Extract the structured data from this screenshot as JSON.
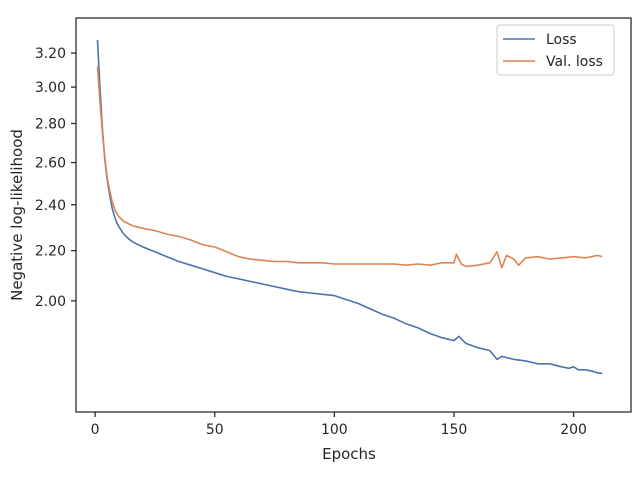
{
  "chart_data": {
    "type": "line",
    "xlabel": "Epochs",
    "ylabel": "Negative log-likelihood",
    "xlim": [
      -8,
      224
    ],
    "ylim": [
      1.62,
      3.42
    ],
    "y_scale": "log",
    "grid": false,
    "legend_position": "top-right",
    "x_ticks": [
      0,
      50,
      100,
      150,
      200
    ],
    "x_tick_labels": [
      "0",
      "50",
      "100",
      "150",
      "200"
    ],
    "y_ticks": [
      2.0,
      2.2,
      2.4,
      2.6,
      2.8,
      3.0,
      3.2
    ],
    "y_tick_labels": [
      "2.00",
      "2.20",
      "2.40",
      "2.60",
      "2.80",
      "3.00",
      "3.20"
    ],
    "colors": {
      "Loss": "#4c72b0",
      "Val. loss": "#dd8452"
    },
    "series": [
      {
        "name": "Loss",
        "x": [
          1,
          2,
          3,
          4,
          5,
          6,
          7,
          8,
          9,
          10,
          12,
          14,
          16,
          18,
          20,
          25,
          30,
          35,
          40,
          45,
          50,
          55,
          60,
          65,
          70,
          75,
          80,
          85,
          90,
          95,
          100,
          105,
          110,
          115,
          120,
          125,
          130,
          135,
          140,
          145,
          150,
          152,
          155,
          160,
          165,
          168,
          170,
          175,
          180,
          185,
          190,
          195,
          198,
          200,
          202,
          205,
          208,
          210,
          212
        ],
        "values": [
          3.28,
          3.0,
          2.78,
          2.62,
          2.52,
          2.45,
          2.39,
          2.35,
          2.32,
          2.3,
          2.27,
          2.25,
          2.235,
          2.225,
          2.215,
          2.195,
          2.175,
          2.155,
          2.14,
          2.125,
          2.11,
          2.095,
          2.085,
          2.075,
          2.065,
          2.055,
          2.045,
          2.035,
          2.03,
          2.025,
          2.02,
          2.005,
          1.99,
          1.97,
          1.95,
          1.935,
          1.915,
          1.9,
          1.88,
          1.865,
          1.855,
          1.87,
          1.845,
          1.83,
          1.82,
          1.79,
          1.8,
          1.79,
          1.785,
          1.775,
          1.775,
          1.765,
          1.76,
          1.765,
          1.755,
          1.755,
          1.75,
          1.745,
          1.743
        ]
      },
      {
        "name": "Val. loss",
        "x": [
          1,
          2,
          3,
          4,
          5,
          6,
          7,
          8,
          9,
          10,
          12,
          14,
          16,
          18,
          20,
          25,
          30,
          35,
          40,
          45,
          50,
          55,
          60,
          65,
          70,
          75,
          80,
          85,
          90,
          95,
          100,
          105,
          110,
          115,
          120,
          125,
          130,
          135,
          140,
          145,
          150,
          151,
          153,
          155,
          160,
          165,
          168,
          170,
          172,
          175,
          177,
          180,
          185,
          190,
          195,
          200,
          205,
          210,
          212
        ],
        "values": [
          3.12,
          2.92,
          2.76,
          2.63,
          2.53,
          2.47,
          2.42,
          2.385,
          2.36,
          2.345,
          2.325,
          2.315,
          2.305,
          2.3,
          2.295,
          2.285,
          2.27,
          2.26,
          2.245,
          2.225,
          2.215,
          2.195,
          2.175,
          2.165,
          2.16,
          2.155,
          2.155,
          2.15,
          2.15,
          2.15,
          2.145,
          2.145,
          2.145,
          2.145,
          2.145,
          2.145,
          2.14,
          2.145,
          2.14,
          2.15,
          2.15,
          2.185,
          2.145,
          2.135,
          2.14,
          2.15,
          2.195,
          2.13,
          2.18,
          2.165,
          2.14,
          2.17,
          2.175,
          2.165,
          2.17,
          2.175,
          2.17,
          2.18,
          2.175
        ]
      }
    ]
  }
}
